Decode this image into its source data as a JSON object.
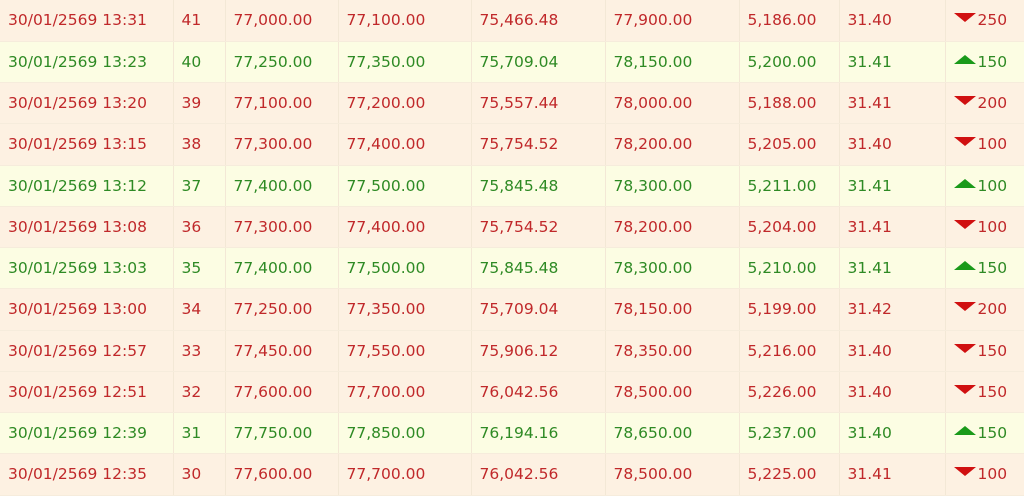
{
  "colors": {
    "down_text": "#c0282a",
    "up_text": "#2e8a24",
    "down_arrow": "#d01010",
    "up_arrow": "#1a9a1a",
    "down_bg": "#fdf1e2",
    "up_bg": "#fcfde3"
  },
  "rows": [
    {
      "datetime": "30/01/2569 13:31",
      "no": "41",
      "c1": "77,000.00",
      "c2": "77,100.00",
      "c3": "75,466.48",
      "c4": "77,900.00",
      "c5": "5,186.00",
      "c6": "31.40",
      "dir": "down",
      "change": "250"
    },
    {
      "datetime": "30/01/2569 13:23",
      "no": "40",
      "c1": "77,250.00",
      "c2": "77,350.00",
      "c3": "75,709.04",
      "c4": "78,150.00",
      "c5": "5,200.00",
      "c6": "31.41",
      "dir": "up",
      "change": "150"
    },
    {
      "datetime": "30/01/2569 13:20",
      "no": "39",
      "c1": "77,100.00",
      "c2": "77,200.00",
      "c3": "75,557.44",
      "c4": "78,000.00",
      "c5": "5,188.00",
      "c6": "31.41",
      "dir": "down",
      "change": "200"
    },
    {
      "datetime": "30/01/2569 13:15",
      "no": "38",
      "c1": "77,300.00",
      "c2": "77,400.00",
      "c3": "75,754.52",
      "c4": "78,200.00",
      "c5": "5,205.00",
      "c6": "31.40",
      "dir": "down",
      "change": "100"
    },
    {
      "datetime": "30/01/2569 13:12",
      "no": "37",
      "c1": "77,400.00",
      "c2": "77,500.00",
      "c3": "75,845.48",
      "c4": "78,300.00",
      "c5": "5,211.00",
      "c6": "31.41",
      "dir": "up",
      "change": "100"
    },
    {
      "datetime": "30/01/2569 13:08",
      "no": "36",
      "c1": "77,300.00",
      "c2": "77,400.00",
      "c3": "75,754.52",
      "c4": "78,200.00",
      "c5": "5,204.00",
      "c6": "31.41",
      "dir": "down",
      "change": "100"
    },
    {
      "datetime": "30/01/2569 13:03",
      "no": "35",
      "c1": "77,400.00",
      "c2": "77,500.00",
      "c3": "75,845.48",
      "c4": "78,300.00",
      "c5": "5,210.00",
      "c6": "31.41",
      "dir": "up",
      "change": "150"
    },
    {
      "datetime": "30/01/2569 13:00",
      "no": "34",
      "c1": "77,250.00",
      "c2": "77,350.00",
      "c3": "75,709.04",
      "c4": "78,150.00",
      "c5": "5,199.00",
      "c6": "31.42",
      "dir": "down",
      "change": "200"
    },
    {
      "datetime": "30/01/2569 12:57",
      "no": "33",
      "c1": "77,450.00",
      "c2": "77,550.00",
      "c3": "75,906.12",
      "c4": "78,350.00",
      "c5": "5,216.00",
      "c6": "31.40",
      "dir": "down",
      "change": "150"
    },
    {
      "datetime": "30/01/2569 12:51",
      "no": "32",
      "c1": "77,600.00",
      "c2": "77,700.00",
      "c3": "76,042.56",
      "c4": "78,500.00",
      "c5": "5,226.00",
      "c6": "31.40",
      "dir": "down",
      "change": "150"
    },
    {
      "datetime": "30/01/2569 12:39",
      "no": "31",
      "c1": "77,750.00",
      "c2": "77,850.00",
      "c3": "76,194.16",
      "c4": "78,650.00",
      "c5": "5,237.00",
      "c6": "31.40",
      "dir": "up",
      "change": "150"
    },
    {
      "datetime": "30/01/2569 12:35",
      "no": "30",
      "c1": "77,600.00",
      "c2": "77,700.00",
      "c3": "76,042.56",
      "c4": "78,500.00",
      "c5": "5,225.00",
      "c6": "31.41",
      "dir": "down",
      "change": "100"
    }
  ]
}
